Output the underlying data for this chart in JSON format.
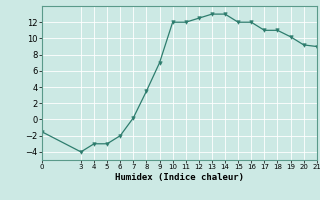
{
  "x": [
    0,
    3,
    4,
    5,
    6,
    7,
    8,
    9,
    10,
    11,
    12,
    13,
    14,
    15,
    16,
    17,
    18,
    19,
    20,
    21
  ],
  "y": [
    -1.5,
    -4.0,
    -3.0,
    -3.0,
    -2.0,
    0.2,
    3.5,
    7.0,
    12.0,
    12.0,
    12.5,
    13.0,
    13.0,
    12.0,
    12.0,
    11.0,
    11.0,
    10.2,
    9.2,
    9.0
  ],
  "line_color": "#2e7d6e",
  "marker": "v",
  "marker_size": 2.5,
  "bg_color": "#cce9e4",
  "grid_color": "#ffffff",
  "xlabel": "Humidex (Indice chaleur)",
  "xlim": [
    0,
    21
  ],
  "ylim": [
    -5,
    14
  ],
  "yticks": [
    -4,
    -2,
    0,
    2,
    4,
    6,
    8,
    10,
    12
  ],
  "xticks": [
    0,
    3,
    4,
    5,
    6,
    7,
    8,
    9,
    10,
    11,
    12,
    13,
    14,
    15,
    16,
    17,
    18,
    19,
    20,
    21
  ],
  "xtick_fontsize": 5.0,
  "ytick_fontsize": 6.0,
  "xlabel_fontsize": 6.5
}
